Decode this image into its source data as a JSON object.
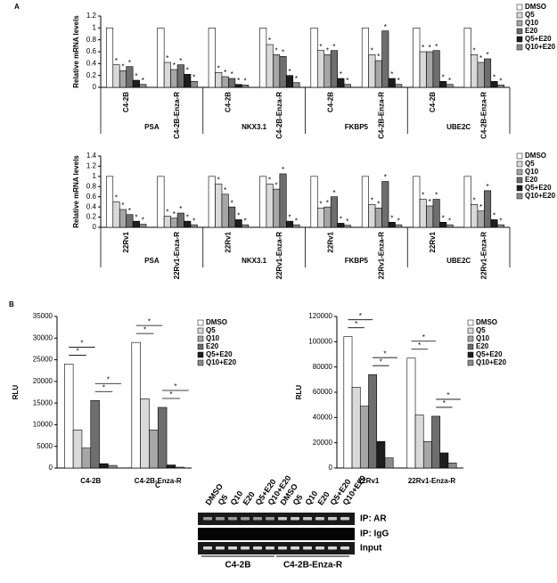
{
  "chart_data": [
    {
      "type": "bar",
      "panel_label": "A",
      "y_label": "Relative mRNA levels",
      "ylim": [
        0,
        1.2
      ],
      "yticks": [
        0,
        0.2,
        0.4,
        0.6,
        0.8,
        1,
        1.2
      ],
      "categories": [
        "C4-2B",
        "C4-2B-Enza-R",
        "C4-2B",
        "C4-2B-Enza-R",
        "C4-2B",
        "C4-2B-Enza-R",
        "C4-2B",
        "C4-2B-Enza-R"
      ],
      "groups": [
        "PSA",
        "NKX3.1",
        "FKBP5",
        "UBE2C"
      ],
      "significance_label": "*",
      "series": [
        {
          "name": "DMSO",
          "color": "#ffffff",
          "significant": false,
          "values": [
            1,
            1,
            1,
            1,
            1,
            1,
            1,
            1
          ]
        },
        {
          "name": "Q5",
          "color": "#d9d9d9",
          "significant": true,
          "values": [
            0.38,
            0.42,
            0.25,
            0.72,
            0.62,
            0.55,
            0.6,
            0.55
          ]
        },
        {
          "name": "Q10",
          "color": "#a6a6a6",
          "significant": true,
          "values": [
            0.28,
            0.3,
            0.18,
            0.55,
            0.55,
            0.45,
            0.6,
            0.42
          ]
        },
        {
          "name": "E20",
          "color": "#6e6e6e",
          "significant": true,
          "values": [
            0.35,
            0.38,
            0.15,
            0.52,
            0.62,
            0.95,
            0.62,
            0.48
          ]
        },
        {
          "name": "Q5+E20",
          "color": "#1e1e1e",
          "significant": true,
          "values": [
            0.12,
            0.22,
            0.05,
            0.2,
            0.15,
            0.15,
            0.1,
            0.1
          ]
        },
        {
          "name": "Q10+E20",
          "color": "#8c8c8c",
          "significant": true,
          "values": [
            0.05,
            0.1,
            0.04,
            0.08,
            0.05,
            0.05,
            0.05,
            0.04
          ]
        }
      ]
    },
    {
      "type": "bar",
      "y_label": "Relative mRNA levels",
      "ylim": [
        0,
        1.4
      ],
      "yticks": [
        0,
        0.2,
        0.4,
        0.6,
        0.8,
        1,
        1.2,
        1.4
      ],
      "categories": [
        "22Rv1",
        "22Rv1-Enza-R",
        "22Rv1",
        "22Rv1-Enza-R",
        "22Rv1",
        "22Rv1-Enza-R",
        "22Rv1",
        "22Rv1-Enza-R"
      ],
      "groups": [
        "PSA",
        "NKX3.1",
        "FKBP5",
        "UBE2C"
      ],
      "significance_label": "*",
      "series": [
        {
          "name": "DMSO",
          "color": "#ffffff",
          "significant": false,
          "values": [
            1,
            1,
            1,
            1,
            1,
            1,
            1,
            1
          ]
        },
        {
          "name": "Q5",
          "color": "#d9d9d9",
          "significant": true,
          "values": [
            0.5,
            0.22,
            0.85,
            0.85,
            0.38,
            0.45,
            0.55,
            0.45
          ]
        },
        {
          "name": "Q10",
          "color": "#a6a6a6",
          "significant": true,
          "values": [
            0.35,
            0.18,
            0.65,
            0.75,
            0.4,
            0.38,
            0.42,
            0.32
          ]
        },
        {
          "name": "E20",
          "color": "#6e6e6e",
          "significant": true,
          "values": [
            0.25,
            0.28,
            0.4,
            1.05,
            0.6,
            0.9,
            0.55,
            0.72
          ]
        },
        {
          "name": "Q5+E20",
          "color": "#1e1e1e",
          "significant": true,
          "values": [
            0.12,
            0.12,
            0.15,
            0.12,
            0.08,
            0.1,
            0.1,
            0.15
          ]
        },
        {
          "name": "Q10+E20",
          "color": "#8c8c8c",
          "significant": true,
          "values": [
            0.06,
            0.05,
            0.05,
            0.05,
            0.04,
            0.05,
            0.05,
            0.05
          ]
        }
      ]
    },
    {
      "type": "bar",
      "panel_label": "B",
      "y_label": "RLU",
      "ylim": [
        0,
        35000
      ],
      "yticks": [
        0,
        5000,
        10000,
        15000,
        20000,
        25000,
        30000,
        35000
      ],
      "categories": [
        "C4-2B",
        "C4-2B-Enza-R"
      ],
      "series": [
        {
          "name": "DMSO",
          "color": "#ffffff",
          "values": [
            24000,
            29000
          ]
        },
        {
          "name": "Q5",
          "color": "#d9d9d9",
          "values": [
            8800,
            16000
          ]
        },
        {
          "name": "Q10",
          "color": "#a6a6a6",
          "values": [
            4600,
            8800
          ]
        },
        {
          "name": "E20",
          "color": "#6e6e6e",
          "values": [
            15600,
            14000
          ]
        },
        {
          "name": "Q5+E20",
          "color": "#1e1e1e",
          "values": [
            1000,
            700
          ]
        },
        {
          "name": "Q10+E20",
          "color": "#8c8c8c",
          "values": [
            600,
            200
          ]
        }
      ],
      "brackets": [
        {
          "group": 0,
          "from": 0,
          "to": 1,
          "label": "*"
        },
        {
          "group": 0,
          "from": 0,
          "to": 2,
          "label": "*"
        },
        {
          "group": 0,
          "from": 3,
          "to": 4,
          "label": "*"
        },
        {
          "group": 0,
          "from": 3,
          "to": 5,
          "label": "*"
        },
        {
          "group": 1,
          "from": 0,
          "to": 1,
          "label": "*"
        },
        {
          "group": 1,
          "from": 0,
          "to": 2,
          "label": "*"
        },
        {
          "group": 1,
          "from": 3,
          "to": 4,
          "label": "*"
        },
        {
          "group": 1,
          "from": 3,
          "to": 5,
          "label": "*"
        }
      ]
    },
    {
      "type": "bar",
      "y_label": "RLU",
      "ylim": [
        0,
        120000
      ],
      "yticks": [
        0,
        20000,
        40000,
        60000,
        80000,
        100000,
        120000
      ],
      "categories": [
        "22Rv1",
        "22Rv1-Enza-R"
      ],
      "series": [
        {
          "name": "DMSO",
          "color": "#ffffff",
          "values": [
            104000,
            87000
          ]
        },
        {
          "name": "Q5",
          "color": "#d9d9d9",
          "values": [
            64000,
            42000
          ]
        },
        {
          "name": "Q10",
          "color": "#a6a6a6",
          "values": [
            49000,
            21000
          ]
        },
        {
          "name": "E20",
          "color": "#6e6e6e",
          "values": [
            74000,
            41000
          ]
        },
        {
          "name": "Q5+E20",
          "color": "#1e1e1e",
          "values": [
            21000,
            12000
          ]
        },
        {
          "name": "Q10+E20",
          "color": "#8c8c8c",
          "values": [
            8000,
            4000
          ]
        }
      ],
      "brackets": [
        {
          "group": 0,
          "from": 0,
          "to": 1,
          "label": "*"
        },
        {
          "group": 0,
          "from": 0,
          "to": 2,
          "label": "*"
        },
        {
          "group": 0,
          "from": 3,
          "to": 4,
          "label": "*"
        },
        {
          "group": 0,
          "from": 3,
          "to": 5,
          "label": "*"
        },
        {
          "group": 1,
          "from": 0,
          "to": 1,
          "label": "*"
        },
        {
          "group": 1,
          "from": 0,
          "to": 2,
          "label": "*"
        },
        {
          "group": 1,
          "from": 3,
          "to": 4,
          "label": "*"
        },
        {
          "group": 1,
          "from": 3,
          "to": 5,
          "label": "*"
        }
      ]
    }
  ],
  "gel": {
    "panel_label": "C",
    "lanes": [
      "DMSO",
      "Q5",
      "Q10",
      "E20",
      "Q5+E20",
      "Q10+E20",
      "DMSO",
      "Q5",
      "Q10",
      "E20",
      "Q5+E20",
      "Q10+E20"
    ],
    "rows": [
      "IP: AR",
      "IP: IgG",
      "Input"
    ],
    "groups": [
      "C4-2B",
      "C4-2B-Enza-R"
    ]
  }
}
